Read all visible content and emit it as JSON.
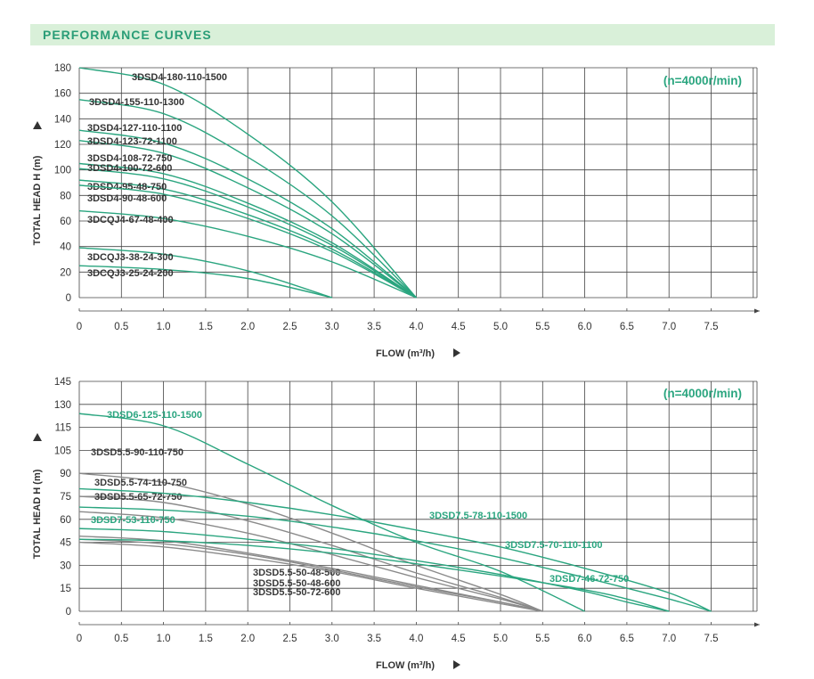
{
  "header": {
    "title": "PERFORMANCE CURVES"
  },
  "colors": {
    "green": "#2aa57f",
    "gray": "#8a8a8a",
    "grid": "#444444",
    "axis_text": "#333333"
  },
  "chart_data": [
    {
      "type": "line",
      "ylabel": "TOTAL HEAD H (m)",
      "xlabel": "FLOW (m³/h)",
      "annotation": "(n=4000r/min)",
      "xlim": [
        0,
        8
      ],
      "ylim": [
        0,
        180
      ],
      "x_ticks": [
        "0",
        "0.5",
        "1.0",
        "1.5",
        "2.0",
        "2.5",
        "3.0",
        "3.5",
        "4.0",
        "4.5",
        "5.0",
        "5.5",
        "6.0",
        "6.5",
        "7.0",
        "7.5"
      ],
      "y_ticks": [
        "0",
        "20",
        "40",
        "60",
        "80",
        "100",
        "120",
        "140",
        "160",
        "180"
      ],
      "grid": true,
      "series": [
        {
          "name": "3DSD4-180-110-1500",
          "color": "green",
          "points": [
            [
              0,
              180
            ],
            [
              1,
              167
            ],
            [
              2,
              128
            ],
            [
              3,
              75
            ],
            [
              4,
              0
            ]
          ]
        },
        {
          "name": "3DSD4-155-110-1300",
          "color": "green",
          "points": [
            [
              0,
              155
            ],
            [
              1,
              144
            ],
            [
              2,
              110
            ],
            [
              3,
              64
            ],
            [
              4,
              0
            ]
          ]
        },
        {
          "name": "3DSD4-127-110-1100",
          "color": "green",
          "points": [
            [
              0,
              131
            ],
            [
              1,
              121
            ],
            [
              2,
              93
            ],
            [
              3,
              54
            ],
            [
              4,
              0
            ]
          ]
        },
        {
          "name": "3DSD4-123-72-1100",
          "color": "green",
          "points": [
            [
              0,
              123
            ],
            [
              1,
              113
            ],
            [
              2,
              86
            ],
            [
              3,
              50
            ],
            [
              4,
              0
            ]
          ]
        },
        {
          "name": "3DSD4-108-72-750",
          "color": "green",
          "points": [
            [
              0,
              105
            ],
            [
              1,
              97
            ],
            [
              2,
              74
            ],
            [
              3,
              43
            ],
            [
              4,
              0
            ]
          ]
        },
        {
          "name": "3DSD4-100-72-600",
          "color": "green",
          "points": [
            [
              0,
              101
            ],
            [
              1,
              93
            ],
            [
              2,
              71
            ],
            [
              3,
              41
            ],
            [
              4,
              0
            ]
          ]
        },
        {
          "name": "3DSD4-95-48-750",
          "color": "green",
          "points": [
            [
              0,
              92
            ],
            [
              1,
              85
            ],
            [
              2,
              65
            ],
            [
              3,
              38
            ],
            [
              4,
              0
            ]
          ]
        },
        {
          "name": "3DSD4-90-48-600",
          "color": "green",
          "points": [
            [
              0,
              88
            ],
            [
              1,
              81
            ],
            [
              2,
              62
            ],
            [
              3,
              36
            ],
            [
              4,
              0
            ]
          ]
        },
        {
          "name": "3DCQJ4-67-48-400",
          "color": "green",
          "points": [
            [
              0,
              68
            ],
            [
              1,
              62
            ],
            [
              2,
              48
            ],
            [
              3,
              28
            ],
            [
              4,
              0
            ]
          ]
        },
        {
          "name": "3DCQJ3-38-24-300",
          "color": "green",
          "points": [
            [
              0,
              39
            ],
            [
              1,
              34
            ],
            [
              2,
              21
            ],
            [
              3,
              0
            ]
          ]
        },
        {
          "name": "3DCQJ3-25-24-200",
          "color": "green",
          "points": [
            [
              0,
              25
            ],
            [
              1,
              22
            ],
            [
              2,
              15
            ],
            [
              3,
              0
            ]
          ]
        }
      ]
    },
    {
      "type": "line",
      "ylabel": "TOTAL HEAD H (m)",
      "xlabel": "FLOW (m³/h)",
      "annotation": "(n=4000r/min)",
      "xlim": [
        0,
        8
      ],
      "ylim": [
        0,
        145
      ],
      "x_ticks": [
        "0",
        "0.5",
        "1.0",
        "1.5",
        "2.0",
        "2.5",
        "3.0",
        "3.5",
        "4.0",
        "4.5",
        "5.0",
        "5.5",
        "6.0",
        "6.5",
        "7.0",
        "7.5"
      ],
      "y_ticks": [
        "0",
        "15",
        "30",
        "45",
        "60",
        "75",
        "90",
        "105",
        "115",
        "130",
        "145"
      ],
      "grid": true,
      "series": [
        {
          "name": "3DSD6-125-110-1500",
          "color": "green",
          "points": [
            [
              0,
              124
            ],
            [
              1,
              116
            ],
            [
              2,
              96
            ],
            [
              3,
              69
            ],
            [
              4,
              45
            ],
            [
              5,
              26
            ],
            [
              6,
              0
            ]
          ]
        },
        {
          "name": "3DSD5.5-90-110-750",
          "color": "gray",
          "points": [
            [
              0,
              90
            ],
            [
              1,
              84
            ],
            [
              2,
              70
            ],
            [
              3,
              51
            ],
            [
              4,
              30
            ],
            [
              5,
              11
            ],
            [
              5.5,
              0
            ]
          ]
        },
        {
          "name": "3DSD5.5-74-110-750",
          "color": "gray",
          "points": [
            [
              0,
              75
            ],
            [
              1,
              71
            ],
            [
              2,
              59
            ],
            [
              3,
              43
            ],
            [
              4,
              25
            ],
            [
              5,
              9
            ],
            [
              5.5,
              0
            ]
          ]
        },
        {
          "name": "3DSD5.5-65-72-750",
          "color": "gray",
          "points": [
            [
              0,
              65
            ],
            [
              1,
              61
            ],
            [
              2,
              51
            ],
            [
              3,
              37
            ],
            [
              4,
              22
            ],
            [
              5,
              8
            ],
            [
              5.5,
              0
            ]
          ]
        },
        {
          "name": "3DSD5.5-50-48-500",
          "color": "gray",
          "points": [
            [
              0,
              49
            ],
            [
              1,
              46
            ],
            [
              2,
              38
            ],
            [
              3,
              28
            ],
            [
              4,
              17
            ],
            [
              5,
              6
            ],
            [
              5.5,
              0
            ]
          ]
        },
        {
          "name": "3DSD5.5-50-48-600",
          "color": "gray",
          "points": [
            [
              0,
              47
            ],
            [
              1,
              44
            ],
            [
              2,
              37
            ],
            [
              3,
              27
            ],
            [
              4,
              16
            ],
            [
              5,
              6
            ],
            [
              5.5,
              0
            ]
          ]
        },
        {
          "name": "3DSD5.5-50-72-600",
          "color": "gray",
          "points": [
            [
              0,
              45
            ],
            [
              1,
              42
            ],
            [
              2,
              35
            ],
            [
              3,
              26
            ],
            [
              4,
              15
            ],
            [
              5,
              5
            ],
            [
              5.5,
              0
            ]
          ]
        },
        {
          "name": "3DSD7.5-78-110-1500",
          "color": "green",
          "points": [
            [
              0,
              80
            ],
            [
              1,
              77
            ],
            [
              2,
              71
            ],
            [
              3,
              63
            ],
            [
              4,
              53
            ],
            [
              5,
              42
            ],
            [
              6,
              28
            ],
            [
              7,
              12
            ],
            [
              7.5,
              0
            ]
          ]
        },
        {
          "name": "3DSD7.5-70-110-1100",
          "color": "green",
          "points": [
            [
              0,
              68
            ],
            [
              1,
              66
            ],
            [
              2,
              62
            ],
            [
              3,
              55
            ],
            [
              4,
              46
            ],
            [
              5,
              35
            ],
            [
              6,
              22
            ],
            [
              7,
              8
            ],
            [
              7.5,
              0
            ]
          ]
        },
        {
          "name": "3DSD7-46-72-750",
          "color": "green",
          "points": [
            [
              0,
              47
            ],
            [
              1,
              46
            ],
            [
              2,
              43
            ],
            [
              3,
              38
            ],
            [
              4,
              31
            ],
            [
              5,
              23
            ],
            [
              6,
              14
            ],
            [
              6.5,
              8
            ],
            [
              7,
              0
            ]
          ]
        },
        {
          "name": "3DSD7-53-110-750",
          "color": "green",
          "points": [
            [
              0,
              54
            ],
            [
              1,
              52
            ],
            [
              2,
              47
            ],
            [
              3,
              41
            ],
            [
              4,
              33
            ],
            [
              5,
              24
            ],
            [
              6,
              13
            ],
            [
              6.5,
              6
            ],
            [
              7,
              0
            ]
          ]
        }
      ]
    }
  ]
}
